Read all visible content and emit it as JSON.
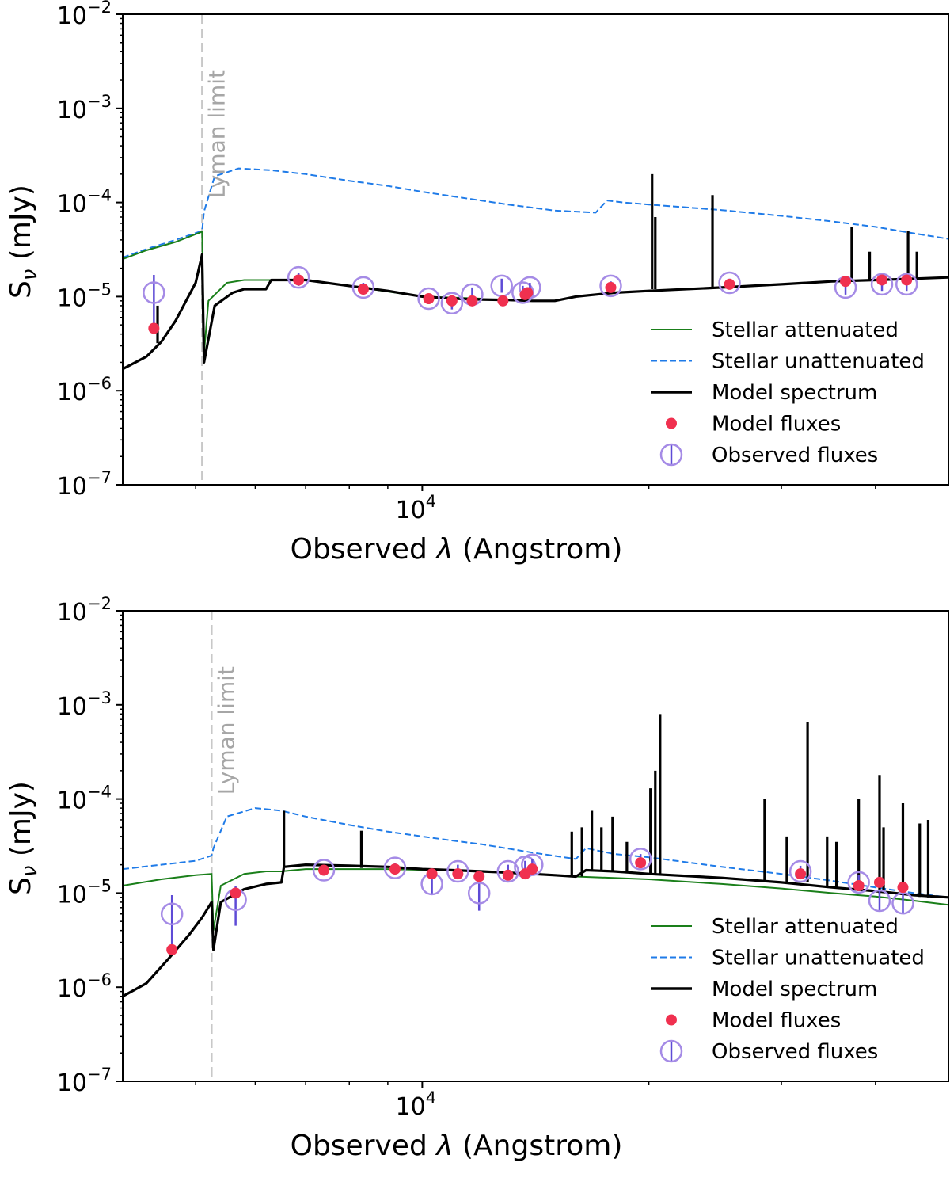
{
  "colors": {
    "attenuated": "#1a7f1a",
    "unattenuated": "#1f7be8",
    "model_spectrum": "#000000",
    "model_flux": "#f0304f",
    "observed_flux": "#a58be6",
    "observed_errbar": "#5e4bd6",
    "lyman_line": "#c8c8c8"
  },
  "chart_data": [
    {
      "type": "line",
      "panel": "top",
      "xlabel_main": "Observed ",
      "xlabel_symbol": "λ",
      "xlabel_unit": " (Angstrom)",
      "ylabel_main": "S",
      "ylabel_sub": "ν",
      "ylabel_unit": " (mJy)",
      "xscale": "log",
      "yscale": "log",
      "xlim": [
        4000,
        50000
      ],
      "ylim": [
        1e-07,
        0.01
      ],
      "y_ticks": [
        {
          "value": 1e-07,
          "base": "10",
          "exp": "−7"
        },
        {
          "value": 1e-06,
          "base": "10",
          "exp": "−6"
        },
        {
          "value": 1e-05,
          "base": "10",
          "exp": "−5"
        },
        {
          "value": 0.0001,
          "base": "10",
          "exp": "−4"
        },
        {
          "value": 0.001,
          "base": "10",
          "exp": "−3"
        },
        {
          "value": 0.01,
          "base": "10",
          "exp": "−2"
        }
      ],
      "x_ticks": [
        {
          "value": 10000,
          "base": "10",
          "exp": "4"
        }
      ],
      "lyman_limit": {
        "wavelength": 5100,
        "label": "Lyman limit"
      },
      "legend": {
        "placement": "lower-right",
        "entries": [
          "Stellar attenuated",
          "Stellar unattenuated",
          "Model spectrum",
          "Model fluxes",
          "Observed fluxes"
        ]
      },
      "series": [
        {
          "name": "Stellar unattenuated",
          "style": "dashed",
          "x": [
            4000,
            4300,
            4700,
            5100,
            5130,
            5300,
            5700,
            6300,
            7000,
            8000,
            9000,
            10000,
            11500,
            13000,
            15000,
            17000,
            17600,
            18500,
            20000,
            25000,
            30000,
            35000,
            40000,
            45000,
            50000
          ],
          "y": [
            2.6e-05,
            3.2e-05,
            4e-05,
            5e-05,
            8e-05,
            0.00019,
            0.00023,
            0.00022,
            0.0002,
            0.00017,
            0.00015,
            0.00013,
            0.00011,
            9.5e-05,
            8.2e-05,
            7.8e-05,
            0.000105,
            0.0001,
            9.5e-05,
            8.3e-05,
            7.2e-05,
            6.3e-05,
            5.5e-05,
            4.7e-05,
            4.1e-05
          ]
        },
        {
          "name": "Stellar attenuated",
          "style": "solid",
          "x": [
            4000,
            4300,
            4700,
            5100,
            5130,
            5200,
            5500,
            5800,
            6000,
            6200,
            6300,
            7000,
            8000,
            10000,
            12000
          ],
          "y": [
            2.5e-05,
            3.1e-05,
            3.8e-05,
            4.9e-05,
            2.5e-06,
            9e-06,
            1.4e-05,
            1.5e-05,
            1.5e-05,
            1.5e-05,
            1.5e-05,
            1.5e-05,
            1.3e-05,
            1e-05,
            9.5e-06
          ]
        },
        {
          "name": "Model spectrum",
          "style": "solid-thick",
          "x": [
            4000,
            4300,
            4500,
            4700,
            5000,
            5100,
            5130,
            5300,
            5600,
            5800,
            6000,
            6200,
            6300,
            7000,
            8000,
            9000,
            10000,
            11000,
            12000,
            13000,
            14000,
            15000,
            16000,
            18000,
            20000,
            25000,
            30000,
            35000,
            40000,
            45000,
            50000
          ],
          "y": [
            1.7e-06,
            2.3e-06,
            3.3e-06,
            5.5e-06,
            1.4e-05,
            2.8e-05,
            2e-06,
            8e-06,
            1.1e-05,
            1.2e-05,
            1.2e-05,
            1.2e-05,
            1.5e-05,
            1.5e-05,
            1.3e-05,
            1.15e-05,
            1e-05,
            9.5e-06,
            9.3e-06,
            9.2e-06,
            9e-06,
            9e-06,
            1e-05,
            1.1e-05,
            1.15e-05,
            1.25e-05,
            1.35e-05,
            1.45e-05,
            1.5e-05,
            1.55e-05,
            1.6e-05
          ]
        },
        {
          "name": "Model spectrum emission lines",
          "style": "spikes",
          "x": [
            4450,
            20200,
            20400,
            24300,
            37200,
            39300,
            44200,
            45400
          ],
          "y": [
            8e-06,
            0.0002,
            7e-05,
            0.00012,
            5.5e-05,
            3e-05,
            5e-05,
            3e-05
          ],
          "base_y": [
            3.2e-06,
            1.2e-05,
            1.2e-05,
            1.25e-05,
            1.45e-05,
            1.5e-05,
            1.55e-05,
            1.55e-05
          ]
        },
        {
          "name": "Model fluxes",
          "style": "markers",
          "x": [
            4400,
            6850,
            8350,
            10200,
            10950,
            11650,
            12800,
            13700,
            13800,
            17800,
            25600,
            36500,
            40800,
            44000
          ],
          "y": [
            4.6e-06,
            1.5e-05,
            1.2e-05,
            9.5e-06,
            9e-06,
            9e-06,
            9e-06,
            1.05e-05,
            1.1e-05,
            1.25e-05,
            1.35e-05,
            1.45e-05,
            1.5e-05,
            1.5e-05
          ]
        },
        {
          "name": "Observed fluxes",
          "style": "circles-errorbars",
          "x": [
            4400,
            6850,
            8350,
            10200,
            10950,
            11650,
            12750,
            13600,
            13900,
            17800,
            25600,
            36500,
            40800,
            44000
          ],
          "y": [
            1.1e-05,
            1.6e-05,
            1.25e-05,
            9.5e-06,
            8.5e-06,
            1.05e-05,
            1.3e-05,
            1.1e-05,
            1.25e-05,
            1.3e-05,
            1.4e-05,
            1.25e-05,
            1.35e-05,
            1.35e-05
          ],
          "y_low": [
            4.5e-06,
            1.3e-05,
            1.05e-05,
            8.3e-06,
            7.3e-06,
            9e-06,
            1.1e-05,
            9.5e-06,
            1.1e-05,
            1.15e-05,
            1.25e-05,
            1.05e-05,
            1.15e-05,
            1.15e-05
          ],
          "y_high": [
            1.7e-05,
            1.8e-05,
            1.4e-05,
            1.05e-05,
            9.5e-06,
            1.25e-05,
            1.55e-05,
            1.3e-05,
            1.4e-05,
            1.45e-05,
            1.55e-05,
            1.45e-05,
            1.55e-05,
            1.55e-05
          ]
        }
      ]
    },
    {
      "type": "line",
      "panel": "bottom",
      "xlabel_main": "Observed ",
      "xlabel_symbol": "λ",
      "xlabel_unit": " (Angstrom)",
      "ylabel_main": "S",
      "ylabel_sub": "ν",
      "ylabel_unit": " (mJy)",
      "xscale": "log",
      "yscale": "log",
      "xlim": [
        4000,
        50000
      ],
      "ylim": [
        1e-07,
        0.01
      ],
      "y_ticks": [
        {
          "value": 1e-07,
          "base": "10",
          "exp": "−7"
        },
        {
          "value": 1e-06,
          "base": "10",
          "exp": "−6"
        },
        {
          "value": 1e-05,
          "base": "10",
          "exp": "−5"
        },
        {
          "value": 0.0001,
          "base": "10",
          "exp": "−4"
        },
        {
          "value": 0.001,
          "base": "10",
          "exp": "−3"
        },
        {
          "value": 0.01,
          "base": "10",
          "exp": "−2"
        }
      ],
      "x_ticks": [
        {
          "value": 10000,
          "base": "10",
          "exp": "4"
        }
      ],
      "lyman_limit": {
        "wavelength": 5250,
        "label": "Lyman limit"
      },
      "legend": {
        "placement": "lower-right",
        "entries": [
          "Stellar attenuated",
          "Stellar unattenuated",
          "Model spectrum",
          "Model fluxes",
          "Observed fluxes"
        ]
      },
      "series": [
        {
          "name": "Stellar unattenuated",
          "style": "dashed",
          "x": [
            4000,
            4500,
            5000,
            5250,
            5280,
            5500,
            6000,
            6500,
            7000,
            8000,
            9000,
            10000,
            11000,
            12000,
            14000,
            16000,
            16500,
            18000,
            20000,
            25000,
            30000,
            35000,
            40000,
            45000,
            50000
          ],
          "y": [
            1.8e-05,
            2e-05,
            2.2e-05,
            2.5e-05,
            3e-05,
            6.5e-05,
            8e-05,
            7.5e-05,
            6.5e-05,
            5.3e-05,
            4.5e-05,
            4e-05,
            3.6e-05,
            3.3e-05,
            2.7e-05,
            2.3e-05,
            3e-05,
            2.6e-05,
            2.4e-05,
            1.9e-05,
            1.6e-05,
            1.35e-05,
            1.15e-05,
            1e-05,
            9e-06
          ]
        },
        {
          "name": "Stellar attenuated",
          "style": "solid",
          "x": [
            4000,
            4500,
            5000,
            5250,
            5280,
            5400,
            5800,
            6200,
            6500,
            7000,
            9000,
            12000,
            16000,
            20000,
            25000,
            30000,
            35000,
            40000,
            45000,
            50000
          ],
          "y": [
            1.2e-05,
            1.4e-05,
            1.55e-05,
            1.6e-05,
            4e-06,
            1.2e-05,
            1.6e-05,
            1.7e-05,
            1.7e-05,
            1.8e-05,
            1.8e-05,
            1.7e-05,
            1.5e-05,
            1.4e-05,
            1.25e-05,
            1.12e-05,
            1e-05,
            9.2e-06,
            8.3e-06,
            7.5e-06
          ]
        },
        {
          "name": "Model spectrum",
          "style": "solid-thick",
          "x": [
            4000,
            4300,
            4600,
            4900,
            5100,
            5250,
            5280,
            5400,
            5800,
            6200,
            6500,
            6550,
            7000,
            8000,
            9000,
            10000,
            11000,
            12000,
            13000,
            14000,
            15000,
            16000,
            16500,
            18000,
            20000,
            25000,
            30000,
            35000,
            40000,
            45000,
            50000
          ],
          "y": [
            8e-07,
            1.1e-06,
            2e-06,
            3.6e-06,
            5.5e-06,
            8e-06,
            2.5e-06,
            8e-06,
            1.1e-05,
            1.25e-05,
            1.3e-05,
            1.9e-05,
            2e-05,
            1.95e-05,
            1.9e-05,
            1.8e-05,
            1.75e-05,
            1.7e-05,
            1.65e-05,
            1.6e-05,
            1.55e-05,
            1.5e-05,
            1.75e-05,
            1.7e-05,
            1.6e-05,
            1.45e-05,
            1.3e-05,
            1.15e-05,
            1.05e-05,
            9.5e-06,
            9e-06
          ]
        },
        {
          "name": "Model spectrum emission lines",
          "style": "spikes",
          "x": [
            6550,
            8300,
            15800,
            16300,
            16800,
            17300,
            17900,
            18700,
            20100,
            20400,
            20700,
            28500,
            30500,
            32500,
            34500,
            35500,
            38000,
            40500,
            41000,
            43500,
            45800,
            47000
          ],
          "y": [
            7.5e-05,
            4.6e-05,
            4.5e-05,
            5e-05,
            7.5e-05,
            5e-05,
            6.5e-05,
            3.5e-05,
            0.00013,
            0.0002,
            0.0008,
            0.0001,
            4e-05,
            0.00065,
            4e-05,
            3.5e-05,
            0.0001,
            0.00018,
            5e-05,
            9e-05,
            5.5e-05,
            6e-05
          ],
          "base_y": [
            1.9e-05,
            1.85e-05,
            1.5e-05,
            1.5e-05,
            1.7e-05,
            1.7e-05,
            1.7e-05,
            1.65e-05,
            1.6e-05,
            1.6e-05,
            1.6e-05,
            1.35e-05,
            1.3e-05,
            1.3e-05,
            1.15e-05,
            1.12e-05,
            1.05e-05,
            1e-05,
            1e-05,
            9.5e-06,
            9.1e-06,
            9e-06
          ]
        },
        {
          "name": "Model fluxes",
          "style": "markers",
          "x": [
            4650,
            5650,
            7400,
            9200,
            10300,
            11150,
            11900,
            13000,
            13700,
            14000,
            19500,
            31800,
            38000,
            40500,
            43500
          ],
          "y": [
            2.5e-06,
            1e-05,
            1.75e-05,
            1.8e-05,
            1.6e-05,
            1.6e-05,
            1.5e-05,
            1.55e-05,
            1.6e-05,
            1.8e-05,
            2.1e-05,
            1.6e-05,
            1.2e-05,
            1.3e-05,
            1.15e-05
          ]
        },
        {
          "name": "Observed fluxes",
          "style": "circles-errorbars",
          "x": [
            4650,
            5650,
            7400,
            9200,
            10300,
            11150,
            11900,
            13000,
            13700,
            14000,
            19500,
            31800,
            38000,
            40500,
            43500
          ],
          "y": [
            6e-06,
            8.5e-06,
            1.75e-05,
            1.85e-05,
            1.25e-05,
            1.7e-05,
            1e-05,
            1.7e-05,
            1.9e-05,
            2e-05,
            2.3e-05,
            1.7e-05,
            1.3e-05,
            8.3e-06,
            7.8e-06
          ],
          "y_low": [
            2.6e-06,
            4.5e-06,
            1.55e-05,
            1.65e-05,
            9.5e-06,
            1.45e-05,
            6.5e-06,
            1.45e-05,
            1.65e-05,
            1.75e-05,
            2.05e-05,
            1.5e-05,
            1.05e-05,
            6.5e-06,
            6e-06
          ],
          "y_high": [
            9.5e-06,
            1.2e-05,
            2e-05,
            2.1e-05,
            1.6e-05,
            2e-05,
            1.4e-05,
            2e-05,
            2.2e-05,
            2.3e-05,
            2.6e-05,
            1.95e-05,
            1.55e-05,
            1.05e-05,
            1e-05
          ]
        }
      ]
    }
  ]
}
